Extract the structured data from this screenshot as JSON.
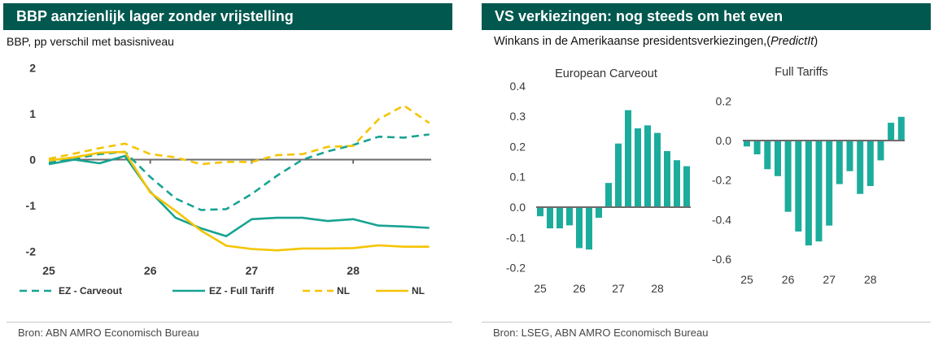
{
  "left_panel": {
    "title": "BBP aanzienlijk lager zonder vrijstelling",
    "subtitle": "BBP, pp verschil met basisniveau",
    "source": "Bron: ABN AMRO Economisch Bureau"
  },
  "right_panel": {
    "title": "VS verkiezingen: nog steeds om het even",
    "subtitle": "Winkans in de Amerikaanse presidentsverkiezingen,(",
    "subtitle_italic": "PredictIt",
    "subtitle_close": ")",
    "source": "Bron: LSEG, ABN AMRO Economisch Bureau"
  },
  "colors": {
    "header_bg": "#00584E",
    "header_text": "#FFFFFF",
    "axis": "#6B6B6B",
    "footer_rule": "#C8C8C8"
  },
  "chart_data": [
    {
      "type": "line",
      "x": [
        25,
        25.25,
        25.5,
        25.75,
        26,
        26.25,
        26.5,
        26.75,
        27,
        27.25,
        27.5,
        27.75,
        28,
        28.25,
        28.5,
        28.75
      ],
      "xticks": [
        "25",
        "26",
        "27",
        "28"
      ],
      "xlim": [
        25,
        28.75
      ],
      "yticks": [
        "2",
        "1",
        "0",
        "-1",
        "-2"
      ],
      "ylim": [
        -2,
        2
      ],
      "grid": false,
      "legend_placement": "bottom",
      "series": [
        {
          "name": "EZ - Carveout",
          "color": "#17A392",
          "dashed": true,
          "values": [
            -0.07,
            0.02,
            0.12,
            0.17,
            -0.38,
            -0.85,
            -1.1,
            -1.08,
            -0.75,
            -0.35,
            0.0,
            0.18,
            0.32,
            0.5,
            0.48,
            0.55
          ]
        },
        {
          "name": "EZ - Full Tariff",
          "color": "#17A392",
          "dashed": false,
          "values": [
            -0.1,
            0.0,
            -0.08,
            0.08,
            -0.7,
            -1.27,
            -1.5,
            -1.67,
            -1.3,
            -1.27,
            -1.27,
            -1.34,
            -1.3,
            -1.44,
            -1.46,
            -1.49
          ]
        },
        {
          "name": "NL",
          "color": "#F5C400",
          "dashed": true,
          "values": [
            0.02,
            0.13,
            0.25,
            0.35,
            0.12,
            0.05,
            -0.1,
            -0.05,
            -0.05,
            0.1,
            0.12,
            0.28,
            0.3,
            0.88,
            1.18,
            0.8
          ]
        },
        {
          "name": "NL",
          "color": "#F5C400",
          "dashed": false,
          "values": [
            -0.02,
            0.05,
            0.15,
            0.17,
            -0.72,
            -1.12,
            -1.55,
            -1.88,
            -1.95,
            -1.98,
            -1.94,
            -1.94,
            -1.93,
            -1.87,
            -1.9,
            -1.9
          ]
        }
      ]
    },
    {
      "type": "bar",
      "title": "European Carveout",
      "x": [
        25,
        25.25,
        25.5,
        25.75,
        26,
        26.25,
        26.5,
        26.75,
        27,
        27.25,
        27.5,
        27.75,
        28,
        28.25,
        28.5,
        28.75
      ],
      "xticks": [
        "25",
        "26",
        "27",
        "28"
      ],
      "xlim": [
        25,
        28.75
      ],
      "yticks": [
        "0.4",
        "0.3",
        "0.2",
        "0.1",
        "0.0",
        "-0.1",
        "-0.2"
      ],
      "ylim": [
        -0.2,
        0.4
      ],
      "grid": false,
      "color": "#1CAC9C",
      "values": [
        -0.03,
        -0.07,
        -0.07,
        -0.06,
        -0.135,
        -0.14,
        -0.035,
        0.08,
        0.21,
        0.32,
        0.26,
        0.27,
        0.245,
        0.185,
        0.155,
        0.135
      ]
    },
    {
      "type": "bar",
      "title": "Full Tariffs",
      "x": [
        25,
        25.25,
        25.5,
        25.75,
        26,
        26.25,
        26.5,
        26.75,
        27,
        27.25,
        27.5,
        27.75,
        28,
        28.25,
        28.5,
        28.75
      ],
      "xticks": [
        "25",
        "26",
        "27",
        "28"
      ],
      "xlim": [
        25,
        28.75
      ],
      "yticks": [
        "0.2",
        "0.0",
        "-0.2",
        "-0.4",
        "-0.6"
      ],
      "ylim": [
        -0.6,
        0.2
      ],
      "grid": false,
      "color": "#1CAC9C",
      "values": [
        -0.03,
        -0.07,
        -0.145,
        -0.18,
        -0.36,
        -0.46,
        -0.53,
        -0.51,
        -0.43,
        -0.22,
        -0.155,
        -0.27,
        -0.23,
        -0.1,
        0.09,
        0.12
      ]
    }
  ]
}
